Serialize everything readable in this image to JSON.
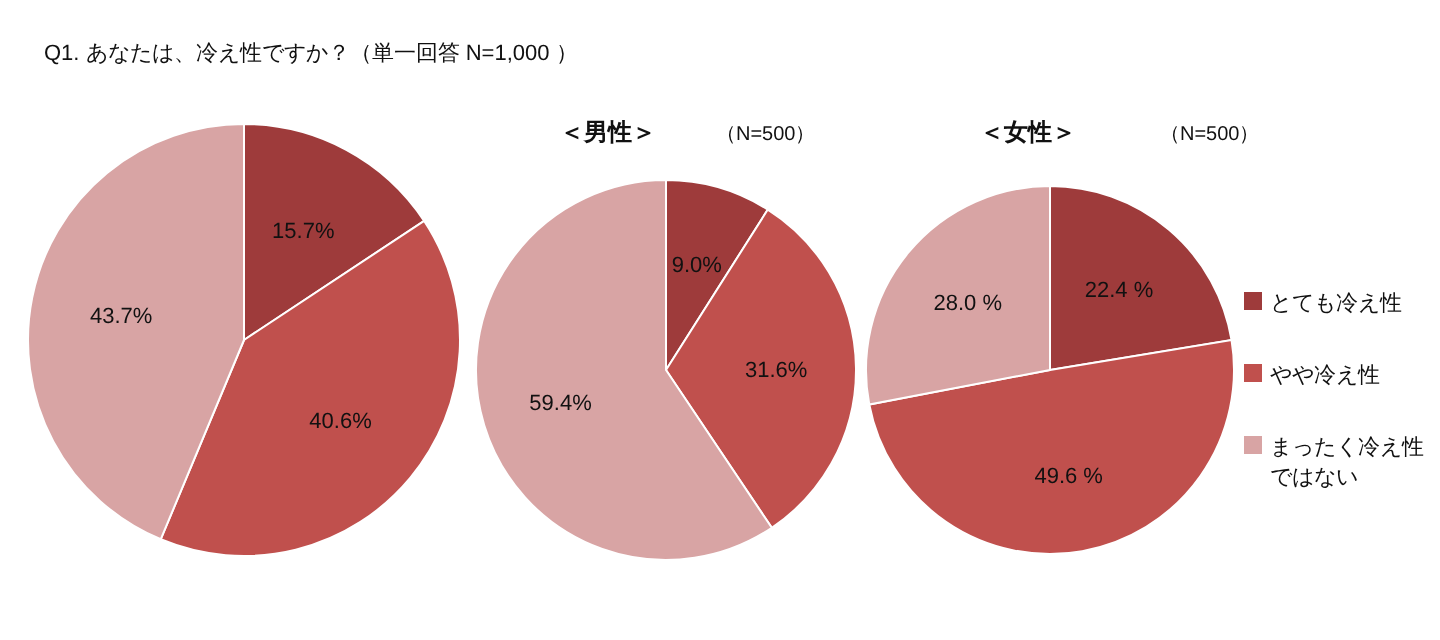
{
  "chart_data": [
    {
      "type": "pie",
      "title": "Q1. あなたは、冷え性ですか？（単一回答 N=1,000 ）",
      "categories": [
        null,
        null,
        null
      ],
      "values": [
        15.7,
        40.6,
        43.7
      ],
      "colors": [
        "#9e3b3b",
        "#c0504d",
        "#d8a4a4"
      ],
      "value_labels": [
        "15.7%",
        "40.6%",
        "43.7%"
      ]
    },
    {
      "type": "pie",
      "title": "＜男性＞",
      "subtitle": "（N=500）",
      "categories": [
        null,
        null,
        null
      ],
      "values": [
        9.0,
        31.6,
        59.4
      ],
      "colors": [
        "#9e3b3b",
        "#c0504d",
        "#d8a4a4"
      ],
      "value_labels": [
        "9.0%",
        "31.6%",
        "59.4%"
      ]
    },
    {
      "type": "pie",
      "title": "＜女性＞",
      "subtitle": "（N=500）",
      "categories": [
        "とても冷え性",
        "やや冷え性",
        "まったく冷え性ではない"
      ],
      "values": [
        22.4,
        49.6,
        28.0
      ],
      "colors": [
        "#9e3b3b",
        "#c0504d",
        "#d8a4a4"
      ],
      "value_labels": [
        "22.4 %",
        "49.6 %",
        "28.0 %"
      ],
      "legend": "right"
    }
  ]
}
